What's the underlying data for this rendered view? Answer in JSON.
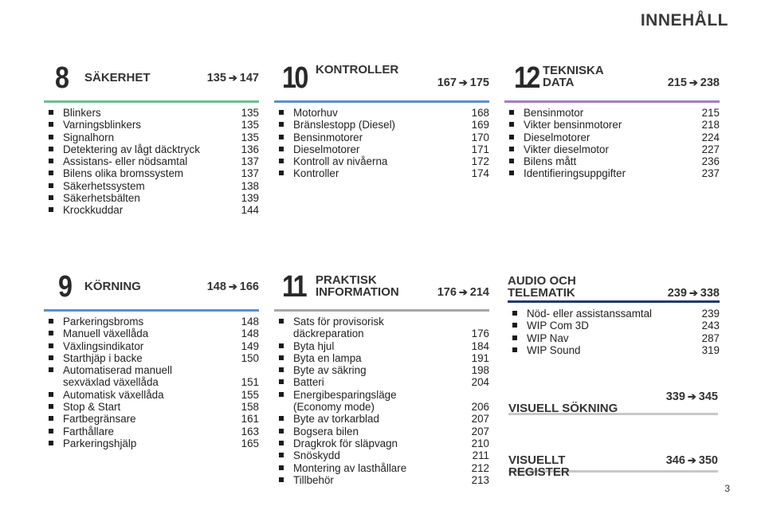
{
  "page_title": "INNEHÅLL",
  "arrow": "➔",
  "sections": [
    {
      "number": "8",
      "title": "SÄKERHET",
      "range_start": "135",
      "range_end": "147",
      "color": "#6bbf8e",
      "items": [
        {
          "label": "Blinkers",
          "page": "135"
        },
        {
          "label": "Varningsblinkers",
          "page": "135"
        },
        {
          "label": "Signalhorn",
          "page": "135"
        },
        {
          "label": "Detektering av lågt däcktryck",
          "page": "136"
        },
        {
          "label": "Assistans- eller nödsamtal",
          "page": "137"
        },
        {
          "label": "Bilens olika bromssystem",
          "page": "137"
        },
        {
          "label": "Säkerhetssystem",
          "page": "138"
        },
        {
          "label": "Säkerhetsbälten",
          "page": "139"
        },
        {
          "label": "Krockkuddar",
          "page": "144"
        }
      ]
    },
    {
      "number": "10",
      "title": "KONTROLLER",
      "range_start": "167",
      "range_end": "175",
      "color": "#5b8ed0",
      "items": [
        {
          "label": "Motorhuv",
          "page": "168"
        },
        {
          "label": "Bränslestopp (Diesel)",
          "page": "169"
        },
        {
          "label": "Bensinmotorer",
          "page": "170"
        },
        {
          "label": "Dieselmotorer",
          "page": "171"
        },
        {
          "label": "Kontroll av nivåerna",
          "page": "172"
        },
        {
          "label": "Kontroller",
          "page": "174"
        }
      ]
    },
    {
      "number": "12",
      "title": "TEKNISKA\nDATA",
      "range_start": "215",
      "range_end": "238",
      "color": "#a57cc4",
      "items": [
        {
          "label": "Bensinmotor",
          "page": "215"
        },
        {
          "label": "Vikter bensinmotorer",
          "page": "218"
        },
        {
          "label": "Dieselmotorer",
          "page": "224"
        },
        {
          "label": "Vikter dieselmotor",
          "page": "227"
        },
        {
          "label": "Bilens mått",
          "page": "236"
        },
        {
          "label": "Identifieringsuppgifter",
          "page": "237"
        }
      ]
    },
    {
      "number": "9",
      "title": "KÖRNING",
      "range_start": "148",
      "range_end": "166",
      "color": "#5b8ed0",
      "items": [
        {
          "label": "Parkeringsbroms",
          "page": "148"
        },
        {
          "label": "Manuell växellåda",
          "page": "148"
        },
        {
          "label": "Växlingsindikator",
          "page": "149"
        },
        {
          "label": "Starthjäp i backe",
          "page": "150"
        },
        {
          "label": "Automatiserad manuell\nsexväxlad växellåda",
          "page": "151"
        },
        {
          "label": "Automatisk växellåda",
          "page": "155"
        },
        {
          "label": "Stop & Start",
          "page": "158"
        },
        {
          "label": "Fartbegränsare",
          "page": "161"
        },
        {
          "label": "Farthållare",
          "page": "163"
        },
        {
          "label": "Parkeringshjälp",
          "page": "165"
        }
      ]
    },
    {
      "number": "11",
      "title": "PRAKTISK\nINFORMATION",
      "range_start": "176",
      "range_end": "214",
      "color": "#a7a7a7",
      "items": [
        {
          "label": "Sats för provisorisk\ndäckreparation",
          "page": "176"
        },
        {
          "label": "Byta hjul",
          "page": "184"
        },
        {
          "label": "Byta en lampa",
          "page": "191"
        },
        {
          "label": "Byte av säkring",
          "page": "198"
        },
        {
          "label": "Batteri",
          "page": "204"
        },
        {
          "label": "Energibesparingsläge\n(Economy mode)",
          "page": "206"
        },
        {
          "label": "Byte av torkarblad",
          "page": "207"
        },
        {
          "label": "Bogsera bilen",
          "page": "207"
        },
        {
          "label": "Dragkrok för släpvagn",
          "page": "210"
        },
        {
          "label": "Snöskydd",
          "page": "211"
        },
        {
          "label": "Montering av lasthållare",
          "page": "212"
        },
        {
          "label": "Tillbehör",
          "page": "213"
        }
      ]
    }
  ],
  "audio": {
    "title": "AUDIO OCH\nTELEMATIK",
    "range_start": "239",
    "range_end": "338",
    "color": "#1f3a6b",
    "items": [
      {
        "label": "Nöd- eller assistanssamtal",
        "page": "239"
      },
      {
        "label": "WIP Com 3D",
        "page": "243"
      },
      {
        "label": "WIP Nav",
        "page": "287"
      },
      {
        "label": "WIP Sound",
        "page": "319"
      }
    ]
  },
  "visual_search": {
    "title": "VISUELL SÖKNING",
    "range_start": "339",
    "range_end": "345"
  },
  "visual_register": {
    "title": "VISUELLT\nREGISTER",
    "range_start": "346",
    "range_end": "350"
  },
  "page_number": "3"
}
